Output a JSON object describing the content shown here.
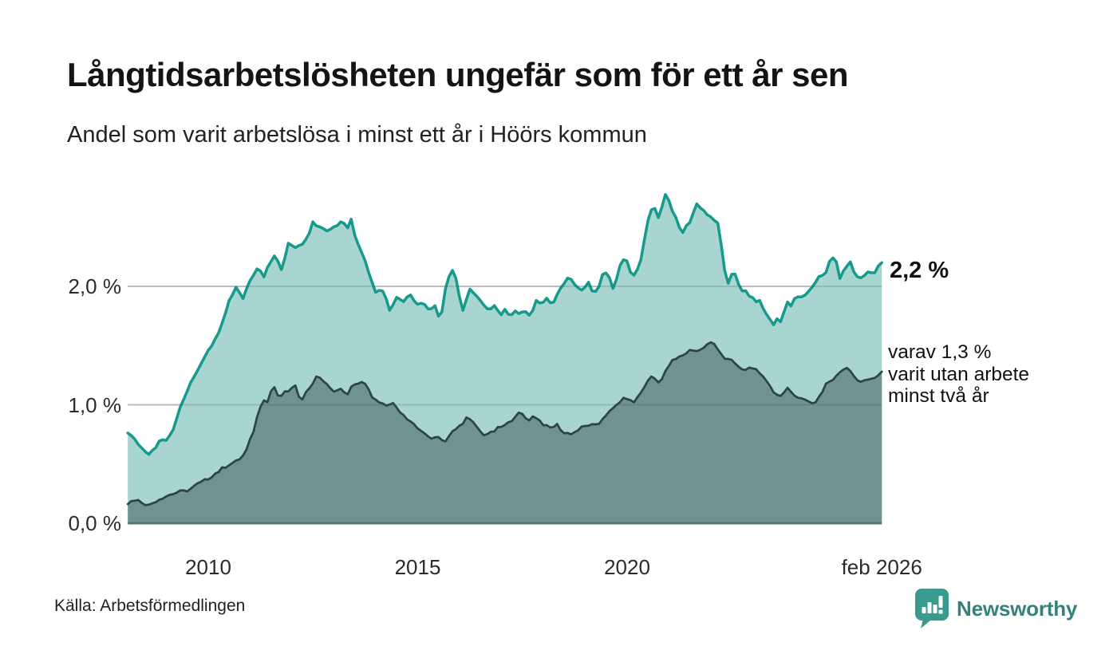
{
  "chart_data": {
    "type": "area",
    "title": "Långtidsarbetslösheten ungefär som för ett år sen",
    "subtitle": "Andel som varit arbetslösa i minst ett år i Höörs kommun",
    "source": "Källa: Arbetsförmedlingen",
    "grid": "horizontal",
    "legend_position": "none",
    "colors": {
      "line_primary": "#17998b",
      "fill_primary": "#a8d5cf",
      "line_secondary": "#2c4645",
      "fill_secondary": "#6f938f",
      "gridline": "#d9d9d9",
      "axis_line": "#5d7370",
      "accent": "#399a8d"
    },
    "x_axis": {
      "range": [
        2008.08,
        2026.08
      ],
      "ticks": [
        {
          "label": "2010",
          "year": 2010
        },
        {
          "label": "2015",
          "year": 2015
        },
        {
          "label": "2020",
          "year": 2020
        },
        {
          "label": "feb 2026",
          "year": 2026.08
        }
      ]
    },
    "y_axis": {
      "unit": "%",
      "range": [
        0,
        3.0
      ],
      "ticks": [
        {
          "label": "0,0 %",
          "value": 0
        },
        {
          "label": "1,0 %",
          "value": 1
        },
        {
          "label": "2,0 %",
          "value": 2
        }
      ]
    },
    "series": [
      {
        "name": "Andel som varit arbetslösa i minst ett år",
        "end_label": "2,2 %",
        "end_value": 2.2,
        "points": [
          [
            2008.08,
            0.75
          ],
          [
            2008.17,
            0.74
          ],
          [
            2008.25,
            0.7
          ],
          [
            2008.42,
            0.62
          ],
          [
            2008.58,
            0.59
          ],
          [
            2008.75,
            0.63
          ],
          [
            2008.83,
            0.7
          ],
          [
            2009.0,
            0.71
          ],
          [
            2009.17,
            0.8
          ],
          [
            2009.25,
            0.9
          ],
          [
            2009.5,
            1.12
          ],
          [
            2009.75,
            1.3
          ],
          [
            2010.0,
            1.47
          ],
          [
            2010.17,
            1.55
          ],
          [
            2010.33,
            1.7
          ],
          [
            2010.5,
            1.88
          ],
          [
            2010.67,
            2.0
          ],
          [
            2010.83,
            1.9
          ],
          [
            2011.0,
            2.06
          ],
          [
            2011.17,
            2.16
          ],
          [
            2011.33,
            2.09
          ],
          [
            2011.5,
            2.22
          ],
          [
            2011.58,
            2.27
          ],
          [
            2011.75,
            2.14
          ],
          [
            2011.92,
            2.38
          ],
          [
            2012.08,
            2.33
          ],
          [
            2012.25,
            2.36
          ],
          [
            2012.42,
            2.44
          ],
          [
            2012.5,
            2.54
          ],
          [
            2012.67,
            2.5
          ],
          [
            2012.83,
            2.46
          ],
          [
            2013.0,
            2.49
          ],
          [
            2013.17,
            2.56
          ],
          [
            2013.33,
            2.5
          ],
          [
            2013.42,
            2.56
          ],
          [
            2013.5,
            2.44
          ],
          [
            2013.67,
            2.28
          ],
          [
            2013.83,
            2.12
          ],
          [
            2014.0,
            1.94
          ],
          [
            2014.17,
            1.97
          ],
          [
            2014.33,
            1.81
          ],
          [
            2014.5,
            1.91
          ],
          [
            2014.67,
            1.87
          ],
          [
            2014.83,
            1.93
          ],
          [
            2014.92,
            1.86
          ],
          [
            2015.08,
            1.85
          ],
          [
            2015.25,
            1.82
          ],
          [
            2015.42,
            1.83
          ],
          [
            2015.54,
            1.71
          ],
          [
            2015.67,
            1.98
          ],
          [
            2015.79,
            2.15
          ],
          [
            2015.88,
            2.12
          ],
          [
            2016.0,
            1.9
          ],
          [
            2016.08,
            1.81
          ],
          [
            2016.27,
            1.99
          ],
          [
            2016.46,
            1.88
          ],
          [
            2016.58,
            1.85
          ],
          [
            2016.71,
            1.79
          ],
          [
            2016.83,
            1.83
          ],
          [
            2016.96,
            1.76
          ],
          [
            2017.08,
            1.8
          ],
          [
            2017.21,
            1.73
          ],
          [
            2017.33,
            1.79
          ],
          [
            2017.46,
            1.76
          ],
          [
            2017.58,
            1.8
          ],
          [
            2017.71,
            1.75
          ],
          [
            2017.83,
            1.88
          ],
          [
            2017.96,
            1.83
          ],
          [
            2018.08,
            1.9
          ],
          [
            2018.21,
            1.85
          ],
          [
            2018.33,
            1.92
          ],
          [
            2018.46,
            2.02
          ],
          [
            2018.63,
            2.09
          ],
          [
            2018.79,
            1.99
          ],
          [
            2018.92,
            1.96
          ],
          [
            2019.08,
            2.03
          ],
          [
            2019.17,
            1.97
          ],
          [
            2019.29,
            1.94
          ],
          [
            2019.42,
            2.1
          ],
          [
            2019.54,
            2.12
          ],
          [
            2019.65,
            1.98
          ],
          [
            2019.79,
            2.1
          ],
          [
            2019.88,
            2.24
          ],
          [
            2020.0,
            2.2
          ],
          [
            2020.13,
            2.07
          ],
          [
            2020.29,
            2.16
          ],
          [
            2020.46,
            2.5
          ],
          [
            2020.58,
            2.64
          ],
          [
            2020.67,
            2.66
          ],
          [
            2020.79,
            2.55
          ],
          [
            2020.88,
            2.81
          ],
          [
            2021.0,
            2.72
          ],
          [
            2021.13,
            2.6
          ],
          [
            2021.25,
            2.49
          ],
          [
            2021.33,
            2.46
          ],
          [
            2021.5,
            2.55
          ],
          [
            2021.67,
            2.7
          ],
          [
            2021.88,
            2.62
          ],
          [
            2022.04,
            2.56
          ],
          [
            2022.17,
            2.54
          ],
          [
            2022.33,
            2.12
          ],
          [
            2022.42,
            2.02
          ],
          [
            2022.54,
            2.16
          ],
          [
            2022.71,
            1.95
          ],
          [
            2022.83,
            1.96
          ],
          [
            2023.0,
            1.89
          ],
          [
            2023.17,
            1.87
          ],
          [
            2023.33,
            1.76
          ],
          [
            2023.5,
            1.68
          ],
          [
            2023.58,
            1.72
          ],
          [
            2023.67,
            1.7
          ],
          [
            2023.83,
            1.88
          ],
          [
            2023.92,
            1.83
          ],
          [
            2024.04,
            1.92
          ],
          [
            2024.17,
            1.9
          ],
          [
            2024.33,
            1.95
          ],
          [
            2024.46,
            2.02
          ],
          [
            2024.58,
            2.08
          ],
          [
            2024.75,
            2.12
          ],
          [
            2024.88,
            2.26
          ],
          [
            2025.0,
            2.2
          ],
          [
            2025.08,
            2.06
          ],
          [
            2025.21,
            2.17
          ],
          [
            2025.33,
            2.21
          ],
          [
            2025.46,
            2.08
          ],
          [
            2025.58,
            2.06
          ],
          [
            2025.75,
            2.12
          ],
          [
            2025.88,
            2.1
          ],
          [
            2026.0,
            2.17
          ],
          [
            2026.08,
            2.2
          ]
        ]
      },
      {
        "name": "varav varit utan arbete minst två år",
        "end_label": "varav 1,3 %\nvarit utan arbete\nminst två år",
        "end_value": 1.3,
        "points": [
          [
            2008.08,
            0.17
          ],
          [
            2008.25,
            0.2
          ],
          [
            2008.42,
            0.18
          ],
          [
            2008.58,
            0.15
          ],
          [
            2008.75,
            0.19
          ],
          [
            2008.92,
            0.22
          ],
          [
            2009.08,
            0.24
          ],
          [
            2009.25,
            0.26
          ],
          [
            2009.42,
            0.27
          ],
          [
            2009.58,
            0.29
          ],
          [
            2009.75,
            0.33
          ],
          [
            2009.92,
            0.36
          ],
          [
            2010.0,
            0.38
          ],
          [
            2010.17,
            0.42
          ],
          [
            2010.33,
            0.46
          ],
          [
            2010.5,
            0.5
          ],
          [
            2010.67,
            0.52
          ],
          [
            2010.83,
            0.57
          ],
          [
            2010.92,
            0.62
          ],
          [
            2011.0,
            0.7
          ],
          [
            2011.08,
            0.78
          ],
          [
            2011.17,
            0.9
          ],
          [
            2011.25,
            1.0
          ],
          [
            2011.33,
            1.05
          ],
          [
            2011.42,
            1.02
          ],
          [
            2011.5,
            1.12
          ],
          [
            2011.58,
            1.15
          ],
          [
            2011.67,
            1.06
          ],
          [
            2011.83,
            1.1
          ],
          [
            2011.96,
            1.13
          ],
          [
            2012.08,
            1.15
          ],
          [
            2012.21,
            1.04
          ],
          [
            2012.33,
            1.1
          ],
          [
            2012.46,
            1.17
          ],
          [
            2012.63,
            1.25
          ],
          [
            2012.75,
            1.2
          ],
          [
            2012.92,
            1.13
          ],
          [
            2013.08,
            1.12
          ],
          [
            2013.21,
            1.13
          ],
          [
            2013.33,
            1.08
          ],
          [
            2013.46,
            1.18
          ],
          [
            2013.6,
            1.18
          ],
          [
            2013.71,
            1.19
          ],
          [
            2013.83,
            1.12
          ],
          [
            2013.96,
            1.05
          ],
          [
            2014.08,
            1.01
          ],
          [
            2014.25,
            0.99
          ],
          [
            2014.38,
            1.01
          ],
          [
            2014.5,
            0.99
          ],
          [
            2014.63,
            0.92
          ],
          [
            2014.79,
            0.86
          ],
          [
            2015.0,
            0.8
          ],
          [
            2015.13,
            0.78
          ],
          [
            2015.29,
            0.7
          ],
          [
            2015.42,
            0.74
          ],
          [
            2015.54,
            0.72
          ],
          [
            2015.67,
            0.69
          ],
          [
            2015.83,
            0.77
          ],
          [
            2016.0,
            0.82
          ],
          [
            2016.17,
            0.89
          ],
          [
            2016.38,
            0.83
          ],
          [
            2016.54,
            0.75
          ],
          [
            2016.75,
            0.76
          ],
          [
            2016.96,
            0.81
          ],
          [
            2017.13,
            0.83
          ],
          [
            2017.33,
            0.91
          ],
          [
            2017.46,
            0.93
          ],
          [
            2017.63,
            0.87
          ],
          [
            2017.79,
            0.91
          ],
          [
            2017.96,
            0.85
          ],
          [
            2018.13,
            0.8
          ],
          [
            2018.33,
            0.83
          ],
          [
            2018.5,
            0.76
          ],
          [
            2018.71,
            0.76
          ],
          [
            2018.88,
            0.8
          ],
          [
            2019.08,
            0.83
          ],
          [
            2019.29,
            0.82
          ],
          [
            2019.46,
            0.91
          ],
          [
            2019.63,
            0.95
          ],
          [
            2019.83,
            1.03
          ],
          [
            2020.0,
            1.06
          ],
          [
            2020.13,
            1.01
          ],
          [
            2020.29,
            1.08
          ],
          [
            2020.42,
            1.16
          ],
          [
            2020.58,
            1.24
          ],
          [
            2020.79,
            1.19
          ],
          [
            2021.04,
            1.36
          ],
          [
            2021.29,
            1.41
          ],
          [
            2021.54,
            1.47
          ],
          [
            2021.71,
            1.45
          ],
          [
            2021.88,
            1.5
          ],
          [
            2022.04,
            1.53
          ],
          [
            2022.21,
            1.46
          ],
          [
            2022.29,
            1.4
          ],
          [
            2022.54,
            1.36
          ],
          [
            2022.75,
            1.29
          ],
          [
            2023.0,
            1.32
          ],
          [
            2023.17,
            1.25
          ],
          [
            2023.38,
            1.19
          ],
          [
            2023.54,
            1.08
          ],
          [
            2023.71,
            1.09
          ],
          [
            2023.83,
            1.13
          ],
          [
            2023.96,
            1.08
          ],
          [
            2024.13,
            1.07
          ],
          [
            2024.29,
            1.03
          ],
          [
            2024.46,
            1.01
          ],
          [
            2024.63,
            1.09
          ],
          [
            2024.75,
            1.18
          ],
          [
            2024.96,
            1.22
          ],
          [
            2025.13,
            1.3
          ],
          [
            2025.29,
            1.32
          ],
          [
            2025.46,
            1.22
          ],
          [
            2025.63,
            1.19
          ],
          [
            2025.79,
            1.22
          ],
          [
            2025.96,
            1.24
          ],
          [
            2026.08,
            1.28
          ]
        ]
      }
    ]
  },
  "footer": {
    "logo_text": "Newsworthy"
  }
}
